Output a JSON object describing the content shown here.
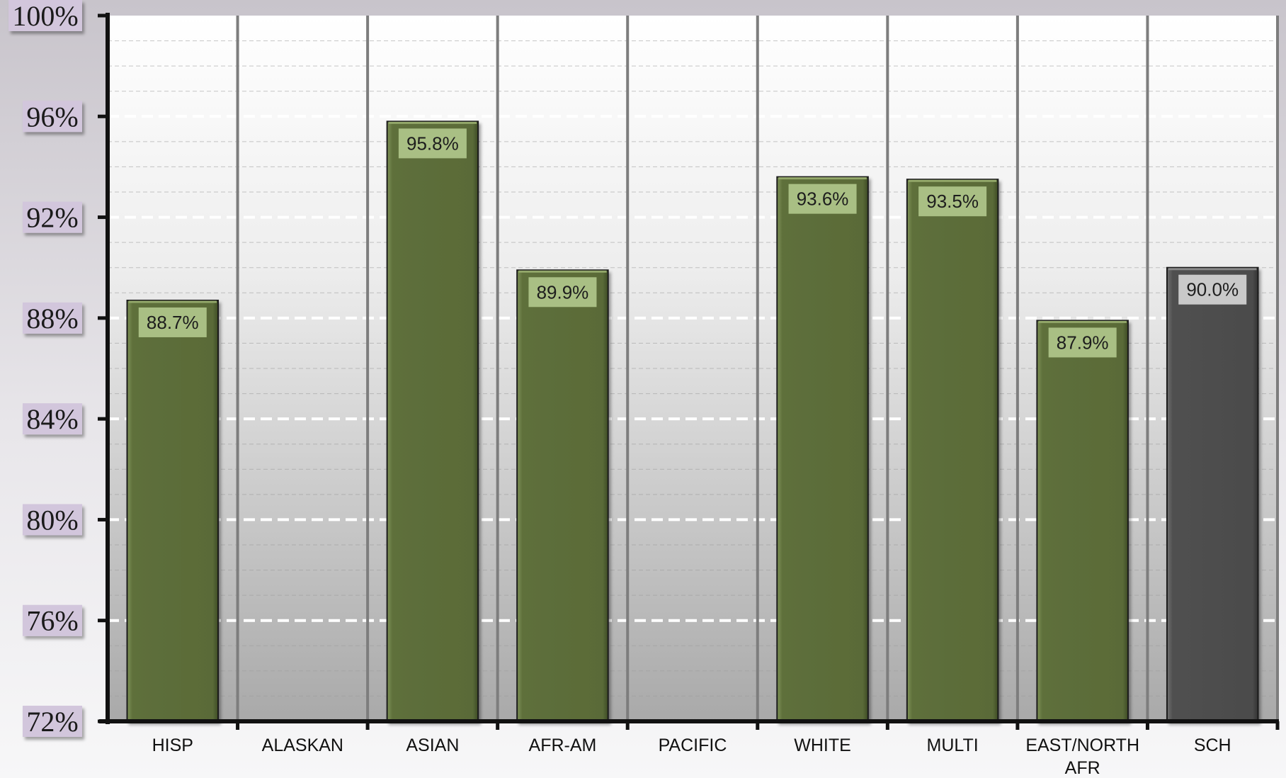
{
  "chart_data": {
    "type": "bar",
    "title": "",
    "xlabel": "",
    "ylabel": "",
    "ylim": [
      72,
      100
    ],
    "yticks": [
      72,
      76,
      80,
      84,
      88,
      92,
      96,
      100
    ],
    "ytick_labels": [
      "72%",
      "76%",
      "80%",
      "84%",
      "88%",
      "92%",
      "96%",
      "100%"
    ],
    "categories": [
      "HISP",
      "ALASKAN",
      "ASIAN",
      "AFR-AM",
      "PACIFIC",
      "WHITE",
      "MULTI",
      "EAST/NORTH AFR",
      "SCH"
    ],
    "category_lines": [
      [
        "HISP"
      ],
      [
        "ALASKAN"
      ],
      [
        "ASIAN"
      ],
      [
        "AFR-AM"
      ],
      [
        "PACIFIC"
      ],
      [
        "WHITE"
      ],
      [
        "MULTI"
      ],
      [
        "EAST/NORTH",
        "AFR"
      ],
      [
        "SCH"
      ]
    ],
    "values": [
      88.7,
      null,
      95.8,
      89.9,
      null,
      93.6,
      93.5,
      87.9,
      90.0
    ],
    "value_labels": [
      "88.7%",
      "",
      "95.8%",
      "89.9%",
      "",
      "93.6%",
      "93.5%",
      "87.9%",
      "90.0%"
    ],
    "highlight_index": 8,
    "grid": true,
    "legend": "none",
    "colors": {
      "bar": "#5b6c39",
      "bar_highlight": "#4e4e4e",
      "label_box": "#a9bf84",
      "label_box_highlight": "#c9c9c9",
      "tick_label_bg": "#d2c6dc",
      "axis": "#111111",
      "separator": "#7d7d7d"
    }
  }
}
